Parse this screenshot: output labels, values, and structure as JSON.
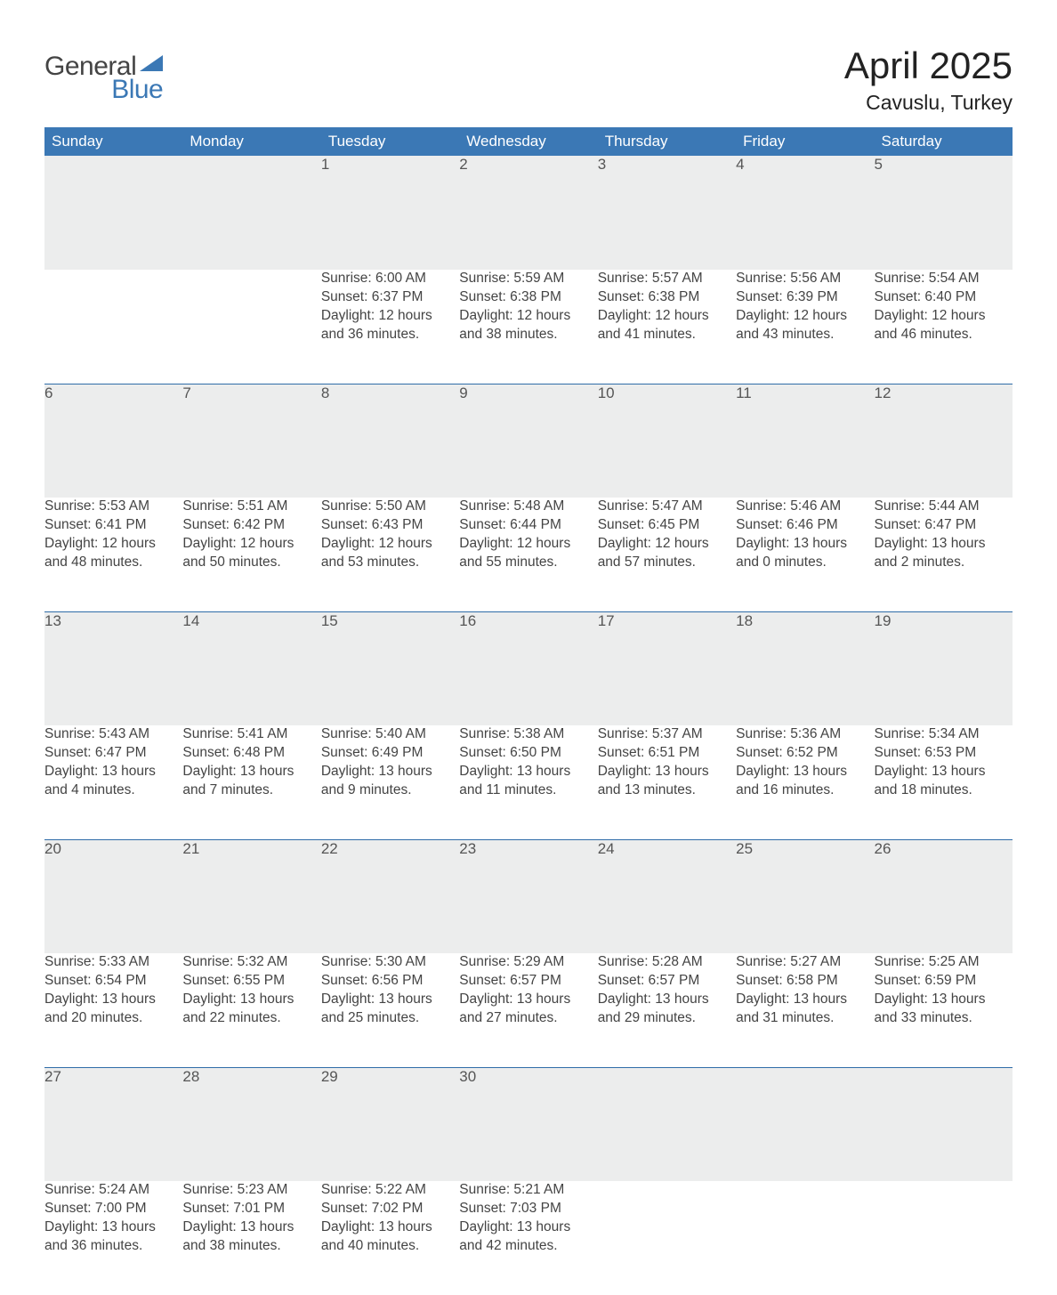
{
  "brand": {
    "line1": "General",
    "line2": "Blue"
  },
  "title": "April 2025",
  "location": "Cavuslu, Turkey",
  "colors": {
    "header_blue": "#3b78b5",
    "accent_blue": "#2f6ca8",
    "row_gray": "#eceded",
    "text": "#333333",
    "cell_text": "#444444",
    "brand_dark": "#444444",
    "brand_blue": "#3b78b5",
    "background": "#ffffff"
  },
  "typography": {
    "title_fontsize": 42,
    "location_fontsize": 23,
    "header_fontsize": 17,
    "cell_fontsize": 15.5
  },
  "columns": [
    "Sunday",
    "Monday",
    "Tuesday",
    "Wednesday",
    "Thursday",
    "Friday",
    "Saturday"
  ],
  "weeks": [
    [
      null,
      null,
      {
        "day": "1",
        "sunrise": "Sunrise: 6:00 AM",
        "sunset": "Sunset: 6:37 PM",
        "dl1": "Daylight: 12 hours",
        "dl2": "and 36 minutes."
      },
      {
        "day": "2",
        "sunrise": "Sunrise: 5:59 AM",
        "sunset": "Sunset: 6:38 PM",
        "dl1": "Daylight: 12 hours",
        "dl2": "and 38 minutes."
      },
      {
        "day": "3",
        "sunrise": "Sunrise: 5:57 AM",
        "sunset": "Sunset: 6:38 PM",
        "dl1": "Daylight: 12 hours",
        "dl2": "and 41 minutes."
      },
      {
        "day": "4",
        "sunrise": "Sunrise: 5:56 AM",
        "sunset": "Sunset: 6:39 PM",
        "dl1": "Daylight: 12 hours",
        "dl2": "and 43 minutes."
      },
      {
        "day": "5",
        "sunrise": "Sunrise: 5:54 AM",
        "sunset": "Sunset: 6:40 PM",
        "dl1": "Daylight: 12 hours",
        "dl2": "and 46 minutes."
      }
    ],
    [
      {
        "day": "6",
        "sunrise": "Sunrise: 5:53 AM",
        "sunset": "Sunset: 6:41 PM",
        "dl1": "Daylight: 12 hours",
        "dl2": "and 48 minutes."
      },
      {
        "day": "7",
        "sunrise": "Sunrise: 5:51 AM",
        "sunset": "Sunset: 6:42 PM",
        "dl1": "Daylight: 12 hours",
        "dl2": "and 50 minutes."
      },
      {
        "day": "8",
        "sunrise": "Sunrise: 5:50 AM",
        "sunset": "Sunset: 6:43 PM",
        "dl1": "Daylight: 12 hours",
        "dl2": "and 53 minutes."
      },
      {
        "day": "9",
        "sunrise": "Sunrise: 5:48 AM",
        "sunset": "Sunset: 6:44 PM",
        "dl1": "Daylight: 12 hours",
        "dl2": "and 55 minutes."
      },
      {
        "day": "10",
        "sunrise": "Sunrise: 5:47 AM",
        "sunset": "Sunset: 6:45 PM",
        "dl1": "Daylight: 12 hours",
        "dl2": "and 57 minutes."
      },
      {
        "day": "11",
        "sunrise": "Sunrise: 5:46 AM",
        "sunset": "Sunset: 6:46 PM",
        "dl1": "Daylight: 13 hours",
        "dl2": "and 0 minutes."
      },
      {
        "day": "12",
        "sunrise": "Sunrise: 5:44 AM",
        "sunset": "Sunset: 6:47 PM",
        "dl1": "Daylight: 13 hours",
        "dl2": "and 2 minutes."
      }
    ],
    [
      {
        "day": "13",
        "sunrise": "Sunrise: 5:43 AM",
        "sunset": "Sunset: 6:47 PM",
        "dl1": "Daylight: 13 hours",
        "dl2": "and 4 minutes."
      },
      {
        "day": "14",
        "sunrise": "Sunrise: 5:41 AM",
        "sunset": "Sunset: 6:48 PM",
        "dl1": "Daylight: 13 hours",
        "dl2": "and 7 minutes."
      },
      {
        "day": "15",
        "sunrise": "Sunrise: 5:40 AM",
        "sunset": "Sunset: 6:49 PM",
        "dl1": "Daylight: 13 hours",
        "dl2": "and 9 minutes."
      },
      {
        "day": "16",
        "sunrise": "Sunrise: 5:38 AM",
        "sunset": "Sunset: 6:50 PM",
        "dl1": "Daylight: 13 hours",
        "dl2": "and 11 minutes."
      },
      {
        "day": "17",
        "sunrise": "Sunrise: 5:37 AM",
        "sunset": "Sunset: 6:51 PM",
        "dl1": "Daylight: 13 hours",
        "dl2": "and 13 minutes."
      },
      {
        "day": "18",
        "sunrise": "Sunrise: 5:36 AM",
        "sunset": "Sunset: 6:52 PM",
        "dl1": "Daylight: 13 hours",
        "dl2": "and 16 minutes."
      },
      {
        "day": "19",
        "sunrise": "Sunrise: 5:34 AM",
        "sunset": "Sunset: 6:53 PM",
        "dl1": "Daylight: 13 hours",
        "dl2": "and 18 minutes."
      }
    ],
    [
      {
        "day": "20",
        "sunrise": "Sunrise: 5:33 AM",
        "sunset": "Sunset: 6:54 PM",
        "dl1": "Daylight: 13 hours",
        "dl2": "and 20 minutes."
      },
      {
        "day": "21",
        "sunrise": "Sunrise: 5:32 AM",
        "sunset": "Sunset: 6:55 PM",
        "dl1": "Daylight: 13 hours",
        "dl2": "and 22 minutes."
      },
      {
        "day": "22",
        "sunrise": "Sunrise: 5:30 AM",
        "sunset": "Sunset: 6:56 PM",
        "dl1": "Daylight: 13 hours",
        "dl2": "and 25 minutes."
      },
      {
        "day": "23",
        "sunrise": "Sunrise: 5:29 AM",
        "sunset": "Sunset: 6:57 PM",
        "dl1": "Daylight: 13 hours",
        "dl2": "and 27 minutes."
      },
      {
        "day": "24",
        "sunrise": "Sunrise: 5:28 AM",
        "sunset": "Sunset: 6:57 PM",
        "dl1": "Daylight: 13 hours",
        "dl2": "and 29 minutes."
      },
      {
        "day": "25",
        "sunrise": "Sunrise: 5:27 AM",
        "sunset": "Sunset: 6:58 PM",
        "dl1": "Daylight: 13 hours",
        "dl2": "and 31 minutes."
      },
      {
        "day": "26",
        "sunrise": "Sunrise: 5:25 AM",
        "sunset": "Sunset: 6:59 PM",
        "dl1": "Daylight: 13 hours",
        "dl2": "and 33 minutes."
      }
    ],
    [
      {
        "day": "27",
        "sunrise": "Sunrise: 5:24 AM",
        "sunset": "Sunset: 7:00 PM",
        "dl1": "Daylight: 13 hours",
        "dl2": "and 36 minutes."
      },
      {
        "day": "28",
        "sunrise": "Sunrise: 5:23 AM",
        "sunset": "Sunset: 7:01 PM",
        "dl1": "Daylight: 13 hours",
        "dl2": "and 38 minutes."
      },
      {
        "day": "29",
        "sunrise": "Sunrise: 5:22 AM",
        "sunset": "Sunset: 7:02 PM",
        "dl1": "Daylight: 13 hours",
        "dl2": "and 40 minutes."
      },
      {
        "day": "30",
        "sunrise": "Sunrise: 5:21 AM",
        "sunset": "Sunset: 7:03 PM",
        "dl1": "Daylight: 13 hours",
        "dl2": "and 42 minutes."
      },
      null,
      null,
      null
    ]
  ]
}
